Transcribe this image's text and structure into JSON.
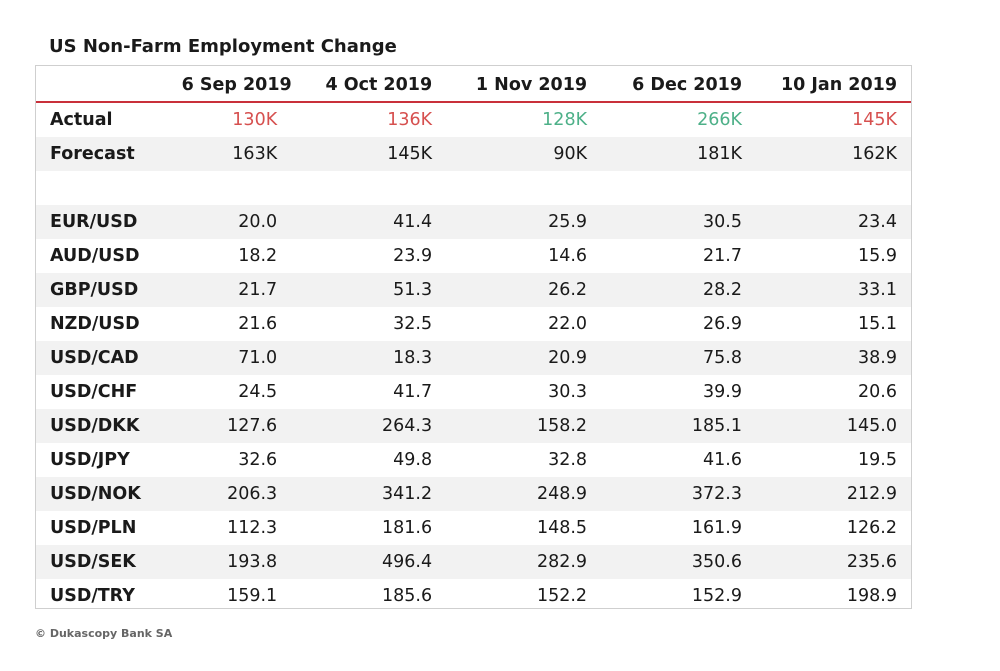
{
  "title": "US Non-Farm Employment Change",
  "footer": "© Dukascopy Bank SA",
  "colors": {
    "negative": "#d6504f",
    "positive": "#4db088",
    "header_rule": "#c9303a"
  },
  "chart_data": {
    "type": "table",
    "title": "US Non-Farm Employment Change",
    "columns": [
      "",
      "6 Sep 2019",
      "4 Oct 2019",
      "1 Nov 2019",
      "6 Dec 2019",
      "10 Jan 2019"
    ],
    "rows": [
      {
        "label": "Actual",
        "values": [
          "130K",
          "136K",
          "128K",
          "266K",
          "145K"
        ],
        "colors": [
          "negative",
          "negative",
          "positive",
          "positive",
          "negative"
        ]
      },
      {
        "label": "Forecast",
        "values": [
          "163K",
          "145K",
          "90K",
          "181K",
          "162K"
        ]
      },
      {
        "label": "",
        "values": [
          "",
          "",
          "",
          "",
          ""
        ]
      },
      {
        "label": "EUR/USD",
        "values": [
          "20.0",
          "41.4",
          "25.9",
          "30.5",
          "23.4"
        ]
      },
      {
        "label": "AUD/USD",
        "values": [
          "18.2",
          "23.9",
          "14.6",
          "21.7",
          "15.9"
        ]
      },
      {
        "label": "GBP/USD",
        "values": [
          "21.7",
          "51.3",
          "26.2",
          "28.2",
          "33.1"
        ]
      },
      {
        "label": "NZD/USD",
        "values": [
          "21.6",
          "32.5",
          "22.0",
          "26.9",
          "15.1"
        ]
      },
      {
        "label": "USD/CAD",
        "values": [
          "71.0",
          "18.3",
          "20.9",
          "75.8",
          "38.9"
        ]
      },
      {
        "label": "USD/CHF",
        "values": [
          "24.5",
          "41.7",
          "30.3",
          "39.9",
          "20.6"
        ]
      },
      {
        "label": "USD/DKK",
        "values": [
          "127.6",
          "264.3",
          "158.2",
          "185.1",
          "145.0"
        ]
      },
      {
        "label": "USD/JPY",
        "values": [
          "32.6",
          "49.8",
          "32.8",
          "41.6",
          "19.5"
        ]
      },
      {
        "label": "USD/NOK",
        "values": [
          "206.3",
          "341.2",
          "248.9",
          "372.3",
          "212.9"
        ]
      },
      {
        "label": "USD/PLN",
        "values": [
          "112.3",
          "181.6",
          "148.5",
          "161.9",
          "126.2"
        ]
      },
      {
        "label": "USD/SEK",
        "values": [
          "193.8",
          "496.4",
          "282.9",
          "350.6",
          "235.6"
        ]
      },
      {
        "label": "USD/TRY",
        "values": [
          "159.1",
          "185.6",
          "152.2",
          "152.9",
          "198.9"
        ]
      }
    ]
  }
}
